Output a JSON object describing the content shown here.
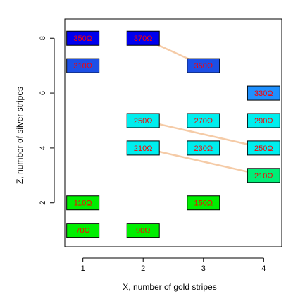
{
  "chart_data": {
    "type": "heatmap",
    "xlabel": "X, number of gold stripes",
    "ylabel": "Z, number of silver stripes",
    "xlim": [
      0.7,
      4.3
    ],
    "ylim": [
      0.4,
      8.7
    ],
    "x_ticks": [
      1,
      2,
      3,
      4
    ],
    "y_ticks": [
      2,
      4,
      6,
      8
    ],
    "grid": false,
    "points": [
      {
        "x": 1,
        "z": 1,
        "label": "70Ω",
        "fill": "#00ee00",
        "text_color": "#ff0000"
      },
      {
        "x": 2,
        "z": 1,
        "label": "90Ω",
        "fill": "#00ee00",
        "text_color": "#ff0000"
      },
      {
        "x": 1,
        "z": 2,
        "label": "110Ω",
        "fill": "#00ee00",
        "text_color": "#ff0000"
      },
      {
        "x": 3,
        "z": 2,
        "label": "150Ω",
        "fill": "#00ee00",
        "text_color": "#ff0000"
      },
      {
        "x": 2,
        "z": 4,
        "label": "210Ω",
        "fill": "#00eeee",
        "text_color": "#ff0000"
      },
      {
        "x": 3,
        "z": 4,
        "label": "230Ω",
        "fill": "#00eeee",
        "text_color": "#ff0000"
      },
      {
        "x": 4,
        "z": 4,
        "label": "250Ω",
        "fill": "#00eeee",
        "text_color": "#ff0000"
      },
      {
        "x": 4,
        "z": 3,
        "label": "210Ω",
        "fill": "#00ee77",
        "text_color": "#ff0000"
      },
      {
        "x": 2,
        "z": 5,
        "label": "250Ω",
        "fill": "#00eeee",
        "text_color": "#ff0000"
      },
      {
        "x": 3,
        "z": 5,
        "label": "270Ω",
        "fill": "#00eeee",
        "text_color": "#ff0000"
      },
      {
        "x": 4,
        "z": 5,
        "label": "290Ω",
        "fill": "#00eeee",
        "text_color": "#ff0000"
      },
      {
        "x": 4,
        "z": 6,
        "label": "330Ω",
        "fill": "#1e90ff",
        "text_color": "#ff0000"
      },
      {
        "x": 1,
        "z": 7,
        "label": "310Ω",
        "fill": "#1c4fe6",
        "text_color": "#ff0000"
      },
      {
        "x": 3,
        "z": 7,
        "label": "350Ω",
        "fill": "#1c4fe6",
        "text_color": "#ff0000"
      },
      {
        "x": 1,
        "z": 8,
        "label": "350Ω",
        "fill": "#0000ee",
        "text_color": "#ff0000"
      },
      {
        "x": 2,
        "z": 8,
        "label": "370Ω",
        "fill": "#0000ee",
        "text_color": "#ff0000"
      }
    ],
    "connectors": [
      {
        "from": [
          2,
          8
        ],
        "to": [
          3,
          7
        ]
      },
      {
        "from": [
          2,
          5
        ],
        "to": [
          4,
          4
        ]
      },
      {
        "from": [
          2,
          4
        ],
        "to": [
          4,
          3
        ]
      }
    ],
    "connector_color": "#f5cba7"
  }
}
